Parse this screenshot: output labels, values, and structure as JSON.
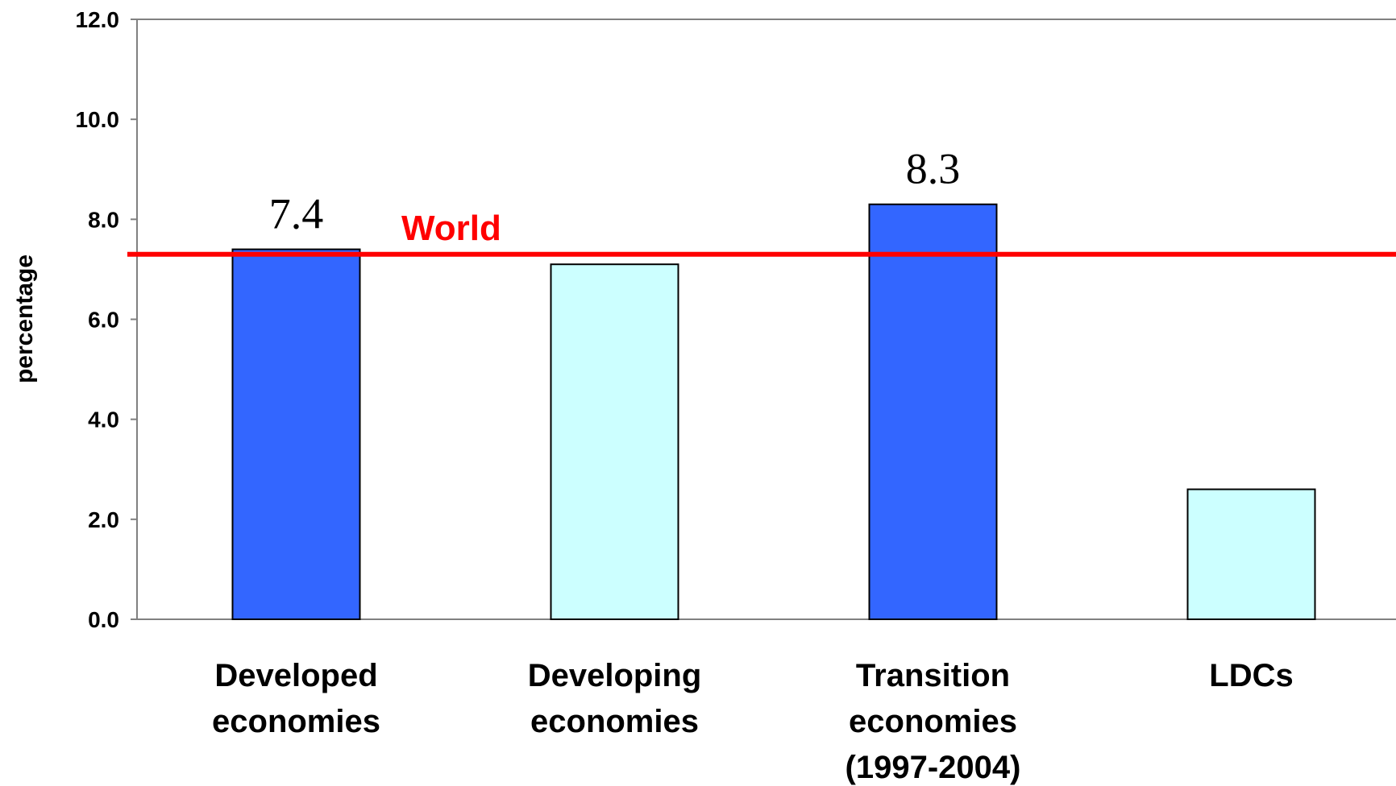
{
  "chart_data": {
    "type": "bar",
    "categories": [
      [
        "Developed",
        "economies"
      ],
      [
        "Developing",
        "economies"
      ],
      [
        "Transition",
        "economies",
        "(1997-2004)"
      ],
      [
        "LDCs"
      ]
    ],
    "values": [
      7.4,
      7.1,
      8.3,
      2.6
    ],
    "data_labels": [
      "7.4",
      "",
      "8.3",
      ""
    ],
    "bar_colors": [
      "#3366ff",
      "#ccffff",
      "#3366ff",
      "#ccffff"
    ],
    "ylabel": "percentage",
    "xlabel": "",
    "title": "",
    "ylim": [
      0,
      12
    ],
    "yticks": [
      "0.0",
      "2.0",
      "4.0",
      "6.0",
      "8.0",
      "10.0",
      "12.0"
    ],
    "grid": false,
    "reference_line": {
      "label": "World",
      "value": 7.3,
      "color": "#ff0000"
    }
  }
}
